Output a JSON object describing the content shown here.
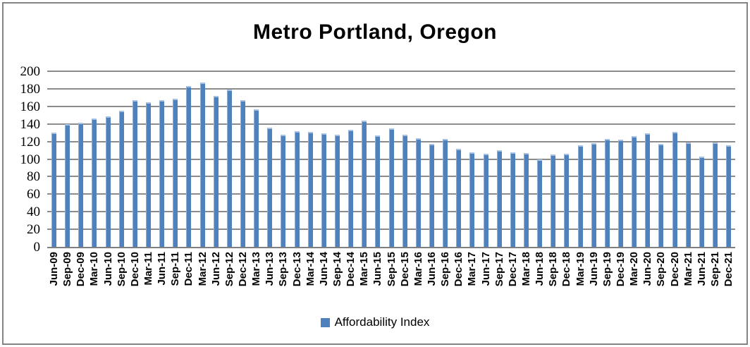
{
  "chart_data": {
    "type": "bar",
    "title": "Metro Portland, Oregon",
    "categories": [
      "Jun-09",
      "Sep-09",
      "Dec-09",
      "Mar-10",
      "Jun-10",
      "Sep-10",
      "Dec-10",
      "Mar-11",
      "Jun-11",
      "Sep-11",
      "Dec-11",
      "Mar-12",
      "Jun-12",
      "Sep-12",
      "Dec-12",
      "Mar-13",
      "Jun-13",
      "Sep-13",
      "Dec-13",
      "Mar-14",
      "Jun-14",
      "Sep-14",
      "Dec-14",
      "Mar-15",
      "Jun-15",
      "Sep-15",
      "Dec-15",
      "Mar-16",
      "Jun-16",
      "Sep-16",
      "Dec-16",
      "Mar-17",
      "Jun-17",
      "Sep-17",
      "Dec-17",
      "Mar-18",
      "Jun-18",
      "Sep-18",
      "Dec-18",
      "Mar-19",
      "Jun-19",
      "Sep-19",
      "Dec-19",
      "Mar-20",
      "Jun-20",
      "Sep-20",
      "Dec-20",
      "Mar-21",
      "Jun-21",
      "Sep-21",
      "Dec-21"
    ],
    "series": [
      {
        "name": "Affordability Index",
        "values": [
          130,
          140,
          141,
          146,
          149,
          155,
          167,
          165,
          167,
          169,
          183,
          187,
          172,
          179,
          167,
          157,
          136,
          128,
          132,
          131,
          129,
          128,
          133,
          144,
          127,
          135,
          128,
          124,
          117,
          123,
          112,
          108,
          106,
          110,
          108,
          107,
          100,
          105,
          106,
          116,
          118,
          123,
          122,
          126,
          129,
          117,
          131,
          119,
          103,
          119,
          116
        ]
      }
    ],
    "xlabel": "",
    "ylabel": "",
    "ylim": [
      0,
      200
    ],
    "yticks": [
      0,
      20,
      40,
      60,
      80,
      100,
      120,
      140,
      160,
      180,
      200
    ],
    "grid": "horizontal",
    "legend_position": "bottom",
    "bar_color": "#4f81bd",
    "bar_highlight_color": "#a7c2e2",
    "gridline_color": "#8c8c8c",
    "axis_line_color": "#7f7f7f",
    "frame_border_color": "#848484"
  },
  "legend": {
    "label": "Affordability Index",
    "swatch_color": "#4f81bd"
  }
}
